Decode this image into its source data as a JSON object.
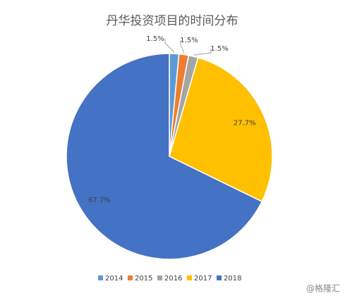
{
  "chart_data": {
    "type": "pie",
    "title": "丹华投资项目的时间分布",
    "categories": [
      "2014",
      "2015",
      "2016",
      "2017",
      "2018"
    ],
    "values": [
      1.5,
      1.5,
      1.5,
      27.7,
      67.7
    ],
    "value_labels": [
      "1.5%",
      "1.5%",
      "1.5%",
      "27.7%",
      "67.7%"
    ],
    "colors": [
      "#5b9bd5",
      "#ed7d31",
      "#a5a5a5",
      "#ffc000",
      "#4472c4"
    ],
    "legend": "bottom"
  },
  "watermark": "@格隆汇"
}
